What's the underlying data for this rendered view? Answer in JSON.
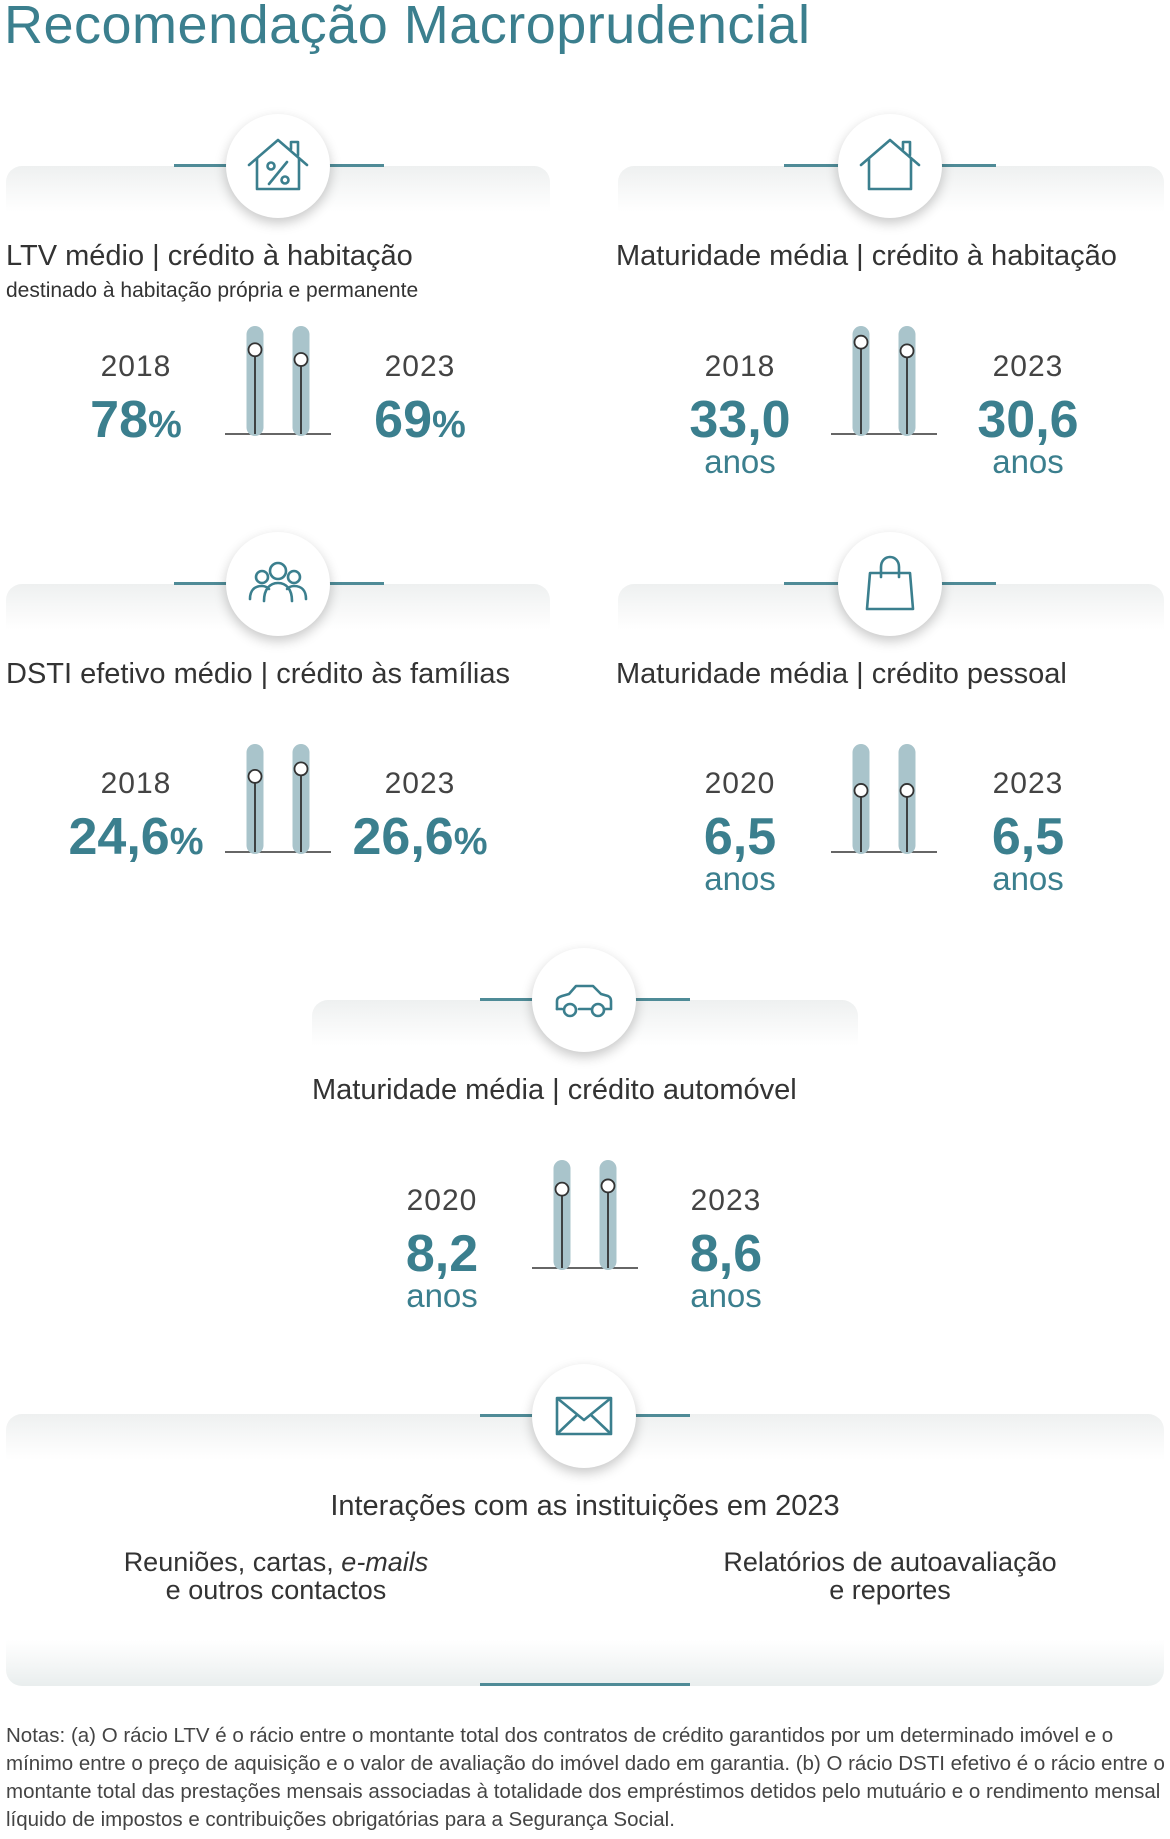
{
  "title": "Recomendação Macroprudencial",
  "colors": {
    "accent": "#3b7f8e",
    "gauge_bar": "#a9c4cb",
    "line": "#4f8b97"
  },
  "indicators": [
    {
      "icon": "house-percent-icon",
      "title": "LTV médio | crédito à habitação",
      "subtitle": "destinado à habitação própria e permanente",
      "left": {
        "year": "2018",
        "value": "78",
        "suffix": "%",
        "unit": "",
        "level": 0.78
      },
      "right": {
        "year": "2023",
        "value": "69",
        "suffix": "%",
        "unit": "",
        "level": 0.69
      }
    },
    {
      "icon": "house-icon",
      "title": "Maturidade média | crédito à habitação",
      "subtitle": "",
      "left": {
        "year": "2018",
        "value": "33,0",
        "suffix": "",
        "unit": "anos",
        "level": 0.85
      },
      "right": {
        "year": "2023",
        "value": "30,6",
        "suffix": "",
        "unit": "anos",
        "level": 0.77
      }
    },
    {
      "icon": "people-icon",
      "title": "DSTI efetivo médio | crédito às famílias",
      "subtitle": "",
      "left": {
        "year": "2018",
        "value": "24,6",
        "suffix": "%",
        "unit": "",
        "level": 0.7
      },
      "right": {
        "year": "2023",
        "value": "26,6",
        "suffix": "%",
        "unit": "",
        "level": 0.77
      }
    },
    {
      "icon": "shopping-bag-icon",
      "title": "Maturidade média | crédito pessoal",
      "subtitle": "",
      "left": {
        "year": "2020",
        "value": "6,5",
        "suffix": "",
        "unit": "anos",
        "level": 0.57
      },
      "right": {
        "year": "2023",
        "value": "6,5",
        "suffix": "",
        "unit": "anos",
        "level": 0.57
      }
    },
    {
      "icon": "car-icon",
      "title": "Maturidade média | crédito automóvel",
      "subtitle": "",
      "left": {
        "year": "2020",
        "value": "8,2",
        "suffix": "",
        "unit": "anos",
        "level": 0.73
      },
      "right": {
        "year": "2023",
        "value": "8,6",
        "suffix": "",
        "unit": "anos",
        "level": 0.76
      }
    }
  ],
  "interactions": {
    "icon": "envelope-icon",
    "title": "Interações com as instituições em 2023",
    "left_line1_a": "Reuniões, cartas, ",
    "left_line1_em": "e-mails",
    "left_line2": "e outros contactos",
    "right_line1": "Relatórios de autoavaliação",
    "right_line2": "e reportes"
  },
  "notes": "Notas: (a) O rácio LTV é o rácio entre o montante total dos contratos de crédito garantidos por um determinado imóvel e o mínimo entre o preço de aquisição e o valor de avaliação do imóvel dado em garantia. (b) O rácio DSTI efetivo é o rácio entre o montante total das prestações mensais associadas à totalidade dos empréstimos detidos pelo mutuário e o rendimento mensal líquido de impostos e contribuições obrigatórias para a Segurança Social."
}
